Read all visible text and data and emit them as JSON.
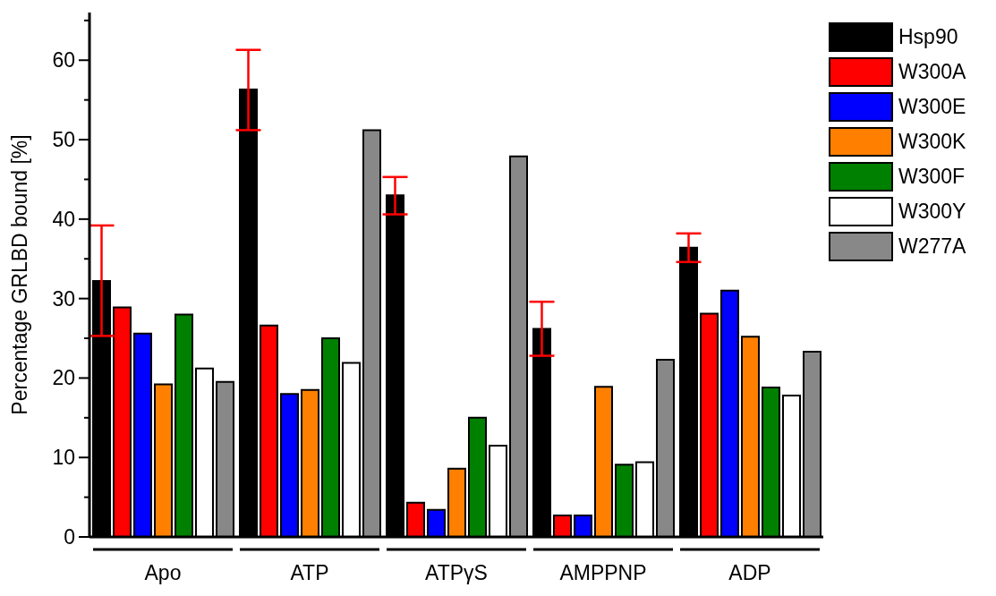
{
  "chart_data": {
    "type": "bar",
    "ylabel": "Percentage GRLBD bound [%]",
    "categories": [
      "Apo",
      "ATP",
      "ATPγS",
      "AMPPNP",
      "ADP"
    ],
    "series": [
      {
        "name": "Hsp90",
        "color": "#000000",
        "values": [
          32.2,
          56.3,
          43.0,
          26.2,
          36.4
        ],
        "errors": [
          [
            25.3,
            39.2
          ],
          [
            51.2,
            61.3
          ],
          [
            40.6,
            45.3
          ],
          [
            22.8,
            29.6
          ],
          [
            34.6,
            38.2
          ]
        ]
      },
      {
        "name": "W300A",
        "color": "#ff0000",
        "values": [
          28.9,
          26.6,
          4.3,
          2.7,
          28.1
        ]
      },
      {
        "name": "W300E",
        "color": "#0000ff",
        "values": [
          25.6,
          18.0,
          3.4,
          2.7,
          31.0
        ]
      },
      {
        "name": "W300K",
        "color": "#ff8000",
        "values": [
          19.2,
          18.5,
          8.6,
          18.9,
          25.2
        ]
      },
      {
        "name": "W300F",
        "color": "#008000",
        "values": [
          28.0,
          25.0,
          15.0,
          9.1,
          18.8
        ]
      },
      {
        "name": "W300Y",
        "color": "#ffffff",
        "values": [
          21.2,
          21.9,
          11.5,
          9.4,
          17.8
        ]
      },
      {
        "name": "W277A",
        "color": "#888888",
        "values": [
          19.5,
          51.2,
          47.9,
          22.3,
          23.3
        ]
      }
    ],
    "ylim": [
      0,
      66
    ],
    "yticks": [
      0,
      {
        "value": 5,
        "label": null
      },
      10,
      {
        "value": 15,
        "label": null
      },
      20,
      {
        "value": 25,
        "label": null
      },
      30,
      {
        "value": 35,
        "label": null
      },
      40,
      {
        "value": 45,
        "label": null
      },
      50,
      {
        "value": 55,
        "label": null
      },
      60,
      {
        "value": 65,
        "label": null
      }
    ],
    "grid": false,
    "legend": "top right"
  }
}
